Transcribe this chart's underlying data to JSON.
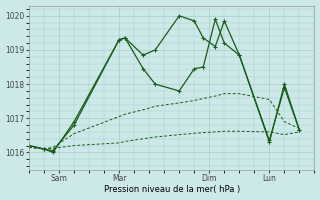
{
  "background_color": "#cce8e8",
  "grid_color": "#aacccc",
  "line_color": "#1a5c1a",
  "xlabel": "Pression niveau de la mer( hPa )",
  "ylim": [
    1015.5,
    1020.3
  ],
  "yticks": [
    1016,
    1017,
    1018,
    1019,
    1020
  ],
  "x_tick_labels": [
    "Sam",
    "Mar",
    "Dim",
    "Lun"
  ],
  "x_tick_positions": [
    1.0,
    3.0,
    6.0,
    8.0
  ],
  "xlim": [
    0,
    9.5
  ],
  "series": [
    {
      "x": [
        0,
        0.5,
        0.8,
        1.5,
        3.0,
        3.2,
        3.8,
        4.2,
        5.0,
        5.5,
        5.8,
        6.2,
        6.5,
        7.0,
        8.0,
        8.5,
        9.0
      ],
      "y": [
        1016.2,
        1016.1,
        1016.05,
        1016.8,
        1019.3,
        1019.35,
        1018.45,
        1018.0,
        1017.8,
        1018.45,
        1018.5,
        1019.9,
        1019.2,
        1018.85,
        1016.35,
        1017.9,
        1016.65
      ],
      "linestyle": "-",
      "marker": "+",
      "linewidth": 0.9,
      "markersize": 3.5,
      "dashes": null
    },
    {
      "x": [
        0,
        0.5,
        0.8,
        1.5,
        3.0,
        3.2,
        3.8,
        4.2,
        5.0,
        5.5,
        5.8,
        6.2,
        6.5,
        7.0,
        8.0,
        8.5,
        9.0
      ],
      "y": [
        1016.15,
        1016.1,
        1016.15,
        1016.55,
        1017.05,
        1017.12,
        1017.25,
        1017.35,
        1017.45,
        1017.52,
        1017.58,
        1017.65,
        1017.72,
        1017.72,
        1017.55,
        1016.9,
        1016.7
      ],
      "linestyle": "--",
      "marker": null,
      "linewidth": 0.7,
      "markersize": 0,
      "dashes": [
        3,
        2
      ]
    },
    {
      "x": [
        0,
        0.5,
        0.8,
        1.5,
        3.0,
        3.2,
        3.8,
        4.2,
        5.0,
        5.5,
        5.8,
        6.2,
        6.5,
        7.0,
        8.0,
        8.5,
        9.0
      ],
      "y": [
        1016.15,
        1016.1,
        1016.12,
        1016.2,
        1016.28,
        1016.32,
        1016.4,
        1016.45,
        1016.52,
        1016.56,
        1016.58,
        1016.6,
        1016.62,
        1016.62,
        1016.6,
        1016.52,
        1016.6
      ],
      "linestyle": "--",
      "marker": null,
      "linewidth": 0.7,
      "markersize": 0,
      "dashes": [
        3,
        2
      ]
    },
    {
      "x": [
        0,
        0.5,
        0.8,
        1.5,
        3.0,
        3.2,
        3.8,
        4.2,
        5.0,
        5.5,
        5.8,
        6.2,
        6.5,
        7.0,
        8.0,
        8.5,
        9.0
      ],
      "y": [
        1016.2,
        1016.1,
        1016.0,
        1016.9,
        1019.3,
        1019.35,
        1018.85,
        1019.0,
        1020.0,
        1019.85,
        1019.35,
        1019.1,
        1019.85,
        1018.85,
        1016.3,
        1018.0,
        1016.65
      ],
      "linestyle": "-",
      "marker": "+",
      "linewidth": 0.9,
      "markersize": 3.5,
      "dashes": null
    }
  ],
  "spine_color": "#999999",
  "tick_color": "#444444",
  "label_fontsize": 6.0,
  "tick_fontsize": 5.5
}
